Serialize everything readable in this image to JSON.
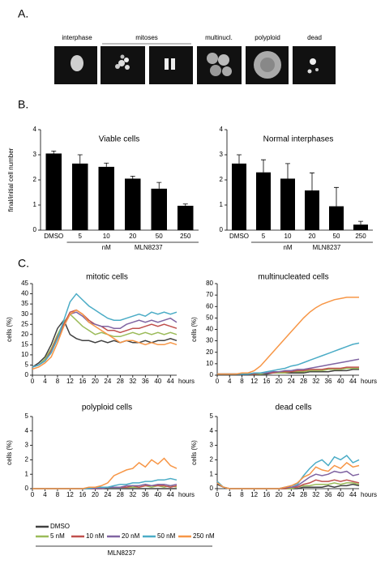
{
  "panels": {
    "a": "A.",
    "b": "B.",
    "c": "C."
  },
  "images": {
    "labels": [
      "interphase",
      "mitoses",
      "multinucl.",
      "polyploid",
      "dead"
    ]
  },
  "chart_data": [
    {
      "type": "bar",
      "title": "Viable cells",
      "y_label": "final/initial cell number",
      "categories": [
        "DMSO",
        "5",
        "10",
        "20",
        "50",
        "250"
      ],
      "unit_label": "nM",
      "group_label": "MLN8237",
      "values": [
        3.05,
        2.65,
        2.52,
        2.05,
        1.65,
        0.97
      ],
      "errors": [
        0.1,
        0.35,
        0.15,
        0.1,
        0.25,
        0.07
      ],
      "color": "#000000",
      "ylim": [
        0,
        4
      ],
      "yticks": [
        0,
        1,
        2,
        3,
        4
      ]
    },
    {
      "type": "bar",
      "title": "Normal interphases",
      "categories": [
        "DMSO",
        "5",
        "10",
        "20",
        "50",
        "250"
      ],
      "unit_label": "nM",
      "group_label": "MLN8237",
      "values": [
        2.65,
        2.3,
        2.05,
        1.58,
        0.95,
        0.22
      ],
      "errors": [
        0.35,
        0.5,
        0.6,
        0.7,
        0.75,
        0.13
      ],
      "color": "#000000",
      "ylim": [
        0,
        4
      ],
      "yticks": [
        0,
        1,
        2,
        3,
        4
      ]
    },
    {
      "type": "line",
      "title": "mitotic cells",
      "y_label": "cells (%)",
      "x_label": "hours",
      "x": [
        0,
        2,
        4,
        6,
        8,
        10,
        12,
        14,
        16,
        18,
        20,
        22,
        24,
        26,
        28,
        30,
        32,
        34,
        36,
        38,
        40,
        42,
        44,
        46
      ],
      "xlim": [
        0,
        46
      ],
      "xticks": [
        0,
        4,
        8,
        12,
        16,
        20,
        24,
        28,
        32,
        36,
        40,
        44
      ],
      "ylim": [
        0,
        45
      ],
      "yticks": [
        0,
        5,
        10,
        15,
        20,
        25,
        30,
        35,
        40,
        45
      ],
      "legend_group_label": "MLN8237",
      "series": [
        {
          "name": "DMSO",
          "color": "#404040",
          "values": [
            4,
            6,
            9,
            15,
            23,
            27,
            20,
            18,
            17,
            17,
            16,
            17,
            16,
            17,
            16,
            17,
            16,
            16,
            17,
            16,
            17,
            17,
            18,
            17
          ]
        },
        {
          "name": "5 nM",
          "color": "#9bbb59",
          "values": [
            4,
            5,
            8,
            13,
            20,
            26,
            30,
            27,
            24,
            22,
            20,
            21,
            20,
            19,
            19,
            20,
            21,
            20,
            21,
            20,
            21,
            20,
            21,
            20
          ]
        },
        {
          "name": "10 nM",
          "color": "#c0504d",
          "values": [
            4,
            5,
            7,
            12,
            19,
            25,
            31,
            32,
            30,
            27,
            25,
            24,
            22,
            22,
            21,
            22,
            23,
            23,
            24,
            25,
            24,
            25,
            24,
            23
          ]
        },
        {
          "name": "20 nM",
          "color": "#8064a2",
          "values": [
            4,
            5,
            7,
            11,
            18,
            24,
            30,
            31,
            29,
            26,
            25,
            24,
            24,
            23,
            23,
            25,
            26,
            27,
            26,
            27,
            26,
            27,
            28,
            26
          ]
        },
        {
          "name": "50 nM",
          "color": "#4bacc6",
          "values": [
            4,
            5,
            7,
            11,
            18,
            27,
            36,
            40,
            37,
            34,
            32,
            30,
            28,
            27,
            27,
            28,
            29,
            30,
            29,
            31,
            30,
            31,
            30,
            31
          ]
        },
        {
          "name": "250 nM",
          "color": "#f79646",
          "values": [
            3,
            4,
            6,
            9,
            16,
            24,
            30,
            32,
            30,
            26,
            24,
            22,
            20,
            18,
            16,
            17,
            17,
            16,
            15,
            16,
            15,
            15,
            16,
            15
          ]
        }
      ]
    },
    {
      "type": "line",
      "title": "multinucleated cells",
      "y_label": "cells (%)",
      "x_label": "hours",
      "x": [
        0,
        2,
        4,
        6,
        8,
        10,
        12,
        14,
        16,
        18,
        20,
        22,
        24,
        26,
        28,
        30,
        32,
        34,
        36,
        38,
        40,
        42,
        44,
        46
      ],
      "xlim": [
        0,
        46
      ],
      "xticks": [
        0,
        4,
        8,
        12,
        16,
        20,
        24,
        28,
        32,
        36,
        40,
        44
      ],
      "ylim": [
        0,
        80
      ],
      "yticks": [
        0,
        10,
        20,
        30,
        40,
        50,
        60,
        70,
        80
      ],
      "series": [
        {
          "name": "DMSO",
          "color": "#404040",
          "values": [
            1,
            1,
            1,
            1,
            1,
            1,
            1,
            1,
            1,
            2,
            2,
            2,
            2,
            2,
            2,
            3,
            3,
            3,
            3,
            4,
            4,
            4,
            5,
            5
          ]
        },
        {
          "name": "5 nM",
          "color": "#9bbb59",
          "values": [
            1,
            1,
            1,
            1,
            1,
            1,
            1,
            1,
            2,
            2,
            2,
            2,
            3,
            3,
            3,
            4,
            4,
            4,
            5,
            5,
            5,
            6,
            6,
            6
          ]
        },
        {
          "name": "10 nM",
          "color": "#c0504d",
          "values": [
            1,
            1,
            1,
            1,
            1,
            1,
            1,
            2,
            2,
            2,
            3,
            3,
            3,
            4,
            4,
            5,
            5,
            5,
            6,
            6,
            6,
            7,
            7,
            7
          ]
        },
        {
          "name": "20 nM",
          "color": "#8064a2",
          "values": [
            1,
            1,
            1,
            1,
            1,
            1,
            2,
            2,
            2,
            3,
            3,
            4,
            4,
            5,
            5,
            6,
            7,
            8,
            9,
            10,
            11,
            12,
            13,
            14
          ]
        },
        {
          "name": "50 nM",
          "color": "#4bacc6",
          "values": [
            1,
            1,
            1,
            1,
            1,
            1,
            2,
            2,
            3,
            4,
            5,
            6,
            8,
            9,
            11,
            13,
            15,
            17,
            19,
            21,
            23,
            25,
            27,
            28
          ]
        },
        {
          "name": "250 nM",
          "color": "#f79646",
          "values": [
            1,
            1,
            1,
            1,
            2,
            2,
            4,
            8,
            14,
            20,
            26,
            32,
            38,
            44,
            50,
            55,
            59,
            62,
            64,
            66,
            67,
            68,
            68,
            68
          ]
        }
      ]
    },
    {
      "type": "line",
      "title": "polyploid cells",
      "y_label": "cells (%)",
      "x_label": "hours",
      "x": [
        0,
        2,
        4,
        6,
        8,
        10,
        12,
        14,
        16,
        18,
        20,
        22,
        24,
        26,
        28,
        30,
        32,
        34,
        36,
        38,
        40,
        42,
        44,
        46
      ],
      "xlim": [
        0,
        46
      ],
      "xticks": [
        0,
        4,
        8,
        12,
        16,
        20,
        24,
        28,
        32,
        36,
        40,
        44
      ],
      "ylim": [
        0,
        5
      ],
      "yticks": [
        0,
        1,
        2,
        3,
        4,
        5
      ],
      "series": [
        {
          "name": "DMSO",
          "color": "#404040",
          "values": [
            0,
            0,
            0,
            0,
            0,
            0,
            0,
            0,
            0,
            0,
            0,
            0,
            0,
            0,
            0,
            0,
            0,
            0,
            0,
            0,
            0,
            0,
            0,
            0
          ]
        },
        {
          "name": "5 nM",
          "color": "#9bbb59",
          "values": [
            0,
            0,
            0,
            0,
            0,
            0,
            0,
            0,
            0,
            0,
            0,
            0,
            0.1,
            0.1,
            0.1,
            0.1,
            0.1,
            0.1,
            0.2,
            0.1,
            0.2,
            0.1,
            0.2,
            0.1
          ]
        },
        {
          "name": "10 nM",
          "color": "#c0504d",
          "values": [
            0,
            0,
            0,
            0,
            0,
            0,
            0,
            0,
            0,
            0,
            0,
            0,
            0.1,
            0.1,
            0.1,
            0.1,
            0.2,
            0.1,
            0.2,
            0.2,
            0.2,
            0.2,
            0.1,
            0.2
          ]
        },
        {
          "name": "20 nM",
          "color": "#8064a2",
          "values": [
            0,
            0,
            0,
            0,
            0,
            0,
            0,
            0,
            0,
            0,
            0,
            0,
            0.1,
            0.1,
            0.1,
            0.2,
            0.2,
            0.2,
            0.3,
            0.2,
            0.3,
            0.3,
            0.2,
            0.3
          ]
        },
        {
          "name": "50 nM",
          "color": "#4bacc6",
          "values": [
            0,
            0,
            0,
            0,
            0,
            0,
            0,
            0,
            0,
            0,
            0.1,
            0.1,
            0.1,
            0.2,
            0.3,
            0.3,
            0.4,
            0.4,
            0.5,
            0.5,
            0.6,
            0.6,
            0.7,
            0.6
          ]
        },
        {
          "name": "250 nM",
          "color": "#f79646",
          "values": [
            0,
            0,
            0,
            0,
            0,
            0,
            0,
            0,
            0,
            0.1,
            0.1,
            0.2,
            0.4,
            0.9,
            1.1,
            1.3,
            1.4,
            1.8,
            1.5,
            2.0,
            1.7,
            2.1,
            1.6,
            1.4
          ]
        }
      ]
    },
    {
      "type": "line",
      "title": "dead cells",
      "y_label": "cells (%)",
      "x_label": "hours",
      "x": [
        0,
        2,
        4,
        6,
        8,
        10,
        12,
        14,
        16,
        18,
        20,
        22,
        24,
        26,
        28,
        30,
        32,
        34,
        36,
        38,
        40,
        42,
        44,
        46
      ],
      "xlim": [
        0,
        46
      ],
      "xticks": [
        0,
        4,
        8,
        12,
        16,
        20,
        24,
        28,
        32,
        36,
        40,
        44
      ],
      "ylim": [
        0,
        5
      ],
      "yticks": [
        0,
        1,
        2,
        3,
        4,
        5
      ],
      "series": [
        {
          "name": "DMSO",
          "color": "#404040",
          "values": [
            0.3,
            0.1,
            0,
            0,
            0,
            0,
            0,
            0,
            0,
            0,
            0,
            0,
            0,
            0,
            0.1,
            0.1,
            0.1,
            0.1,
            0.2,
            0.1,
            0.2,
            0.2,
            0.3,
            0.2
          ]
        },
        {
          "name": "5 nM",
          "color": "#9bbb59",
          "values": [
            0.4,
            0.1,
            0,
            0,
            0,
            0,
            0,
            0,
            0,
            0,
            0,
            0,
            0,
            0.1,
            0.2,
            0.2,
            0.3,
            0.3,
            0.3,
            0.4,
            0.3,
            0.4,
            0.4,
            0.3
          ]
        },
        {
          "name": "10 nM",
          "color": "#c0504d",
          "values": [
            0.4,
            0.1,
            0,
            0,
            0,
            0,
            0,
            0,
            0,
            0,
            0,
            0,
            0.1,
            0.1,
            0.3,
            0.4,
            0.6,
            0.5,
            0.5,
            0.6,
            0.5,
            0.6,
            0.5,
            0.4
          ]
        },
        {
          "name": "20 nM",
          "color": "#8064a2",
          "values": [
            0.4,
            0.1,
            0,
            0,
            0,
            0,
            0,
            0,
            0,
            0,
            0,
            0.1,
            0.1,
            0.2,
            0.5,
            0.8,
            1.0,
            0.9,
            1.0,
            1.2,
            1.1,
            1.2,
            0.9,
            1.0
          ]
        },
        {
          "name": "50 nM",
          "color": "#4bacc6",
          "values": [
            0.5,
            0.1,
            0,
            0,
            0,
            0,
            0,
            0,
            0,
            0,
            0,
            0.1,
            0.2,
            0.3,
            0.9,
            1.4,
            1.8,
            2.0,
            1.6,
            2.2,
            2.0,
            2.3,
            1.8,
            2.0
          ]
        },
        {
          "name": "250 nM",
          "color": "#f79646",
          "values": [
            0.4,
            0.1,
            0,
            0,
            0,
            0,
            0,
            0,
            0,
            0,
            0,
            0.1,
            0.2,
            0.4,
            0.8,
            1.0,
            1.5,
            1.3,
            1.2,
            1.6,
            1.4,
            1.8,
            1.5,
            1.6
          ]
        }
      ]
    }
  ]
}
